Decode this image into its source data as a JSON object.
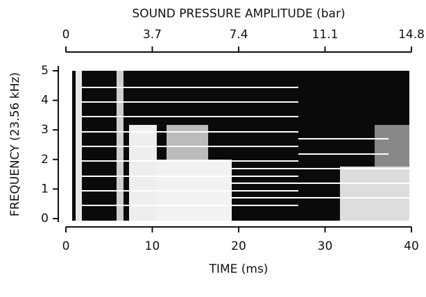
{
  "chart_data": {
    "type": "spectrogram",
    "x_label": "TIME (ms)",
    "y_label": "FREQUENCY (23.56 kHz)",
    "x2_label": "SOUND PRESSURE AMPLITUDE (bar)",
    "xlim": [
      0,
      40
    ],
    "xticks": [
      0,
      10,
      20,
      30,
      40
    ],
    "ylim": [
      0,
      5
    ],
    "yticks": [
      0,
      1,
      2,
      3,
      4,
      5
    ],
    "x2lim": [
      0,
      14.8
    ],
    "x2ticks": [
      0,
      3.7,
      7.4,
      11.1,
      14.8
    ]
  }
}
